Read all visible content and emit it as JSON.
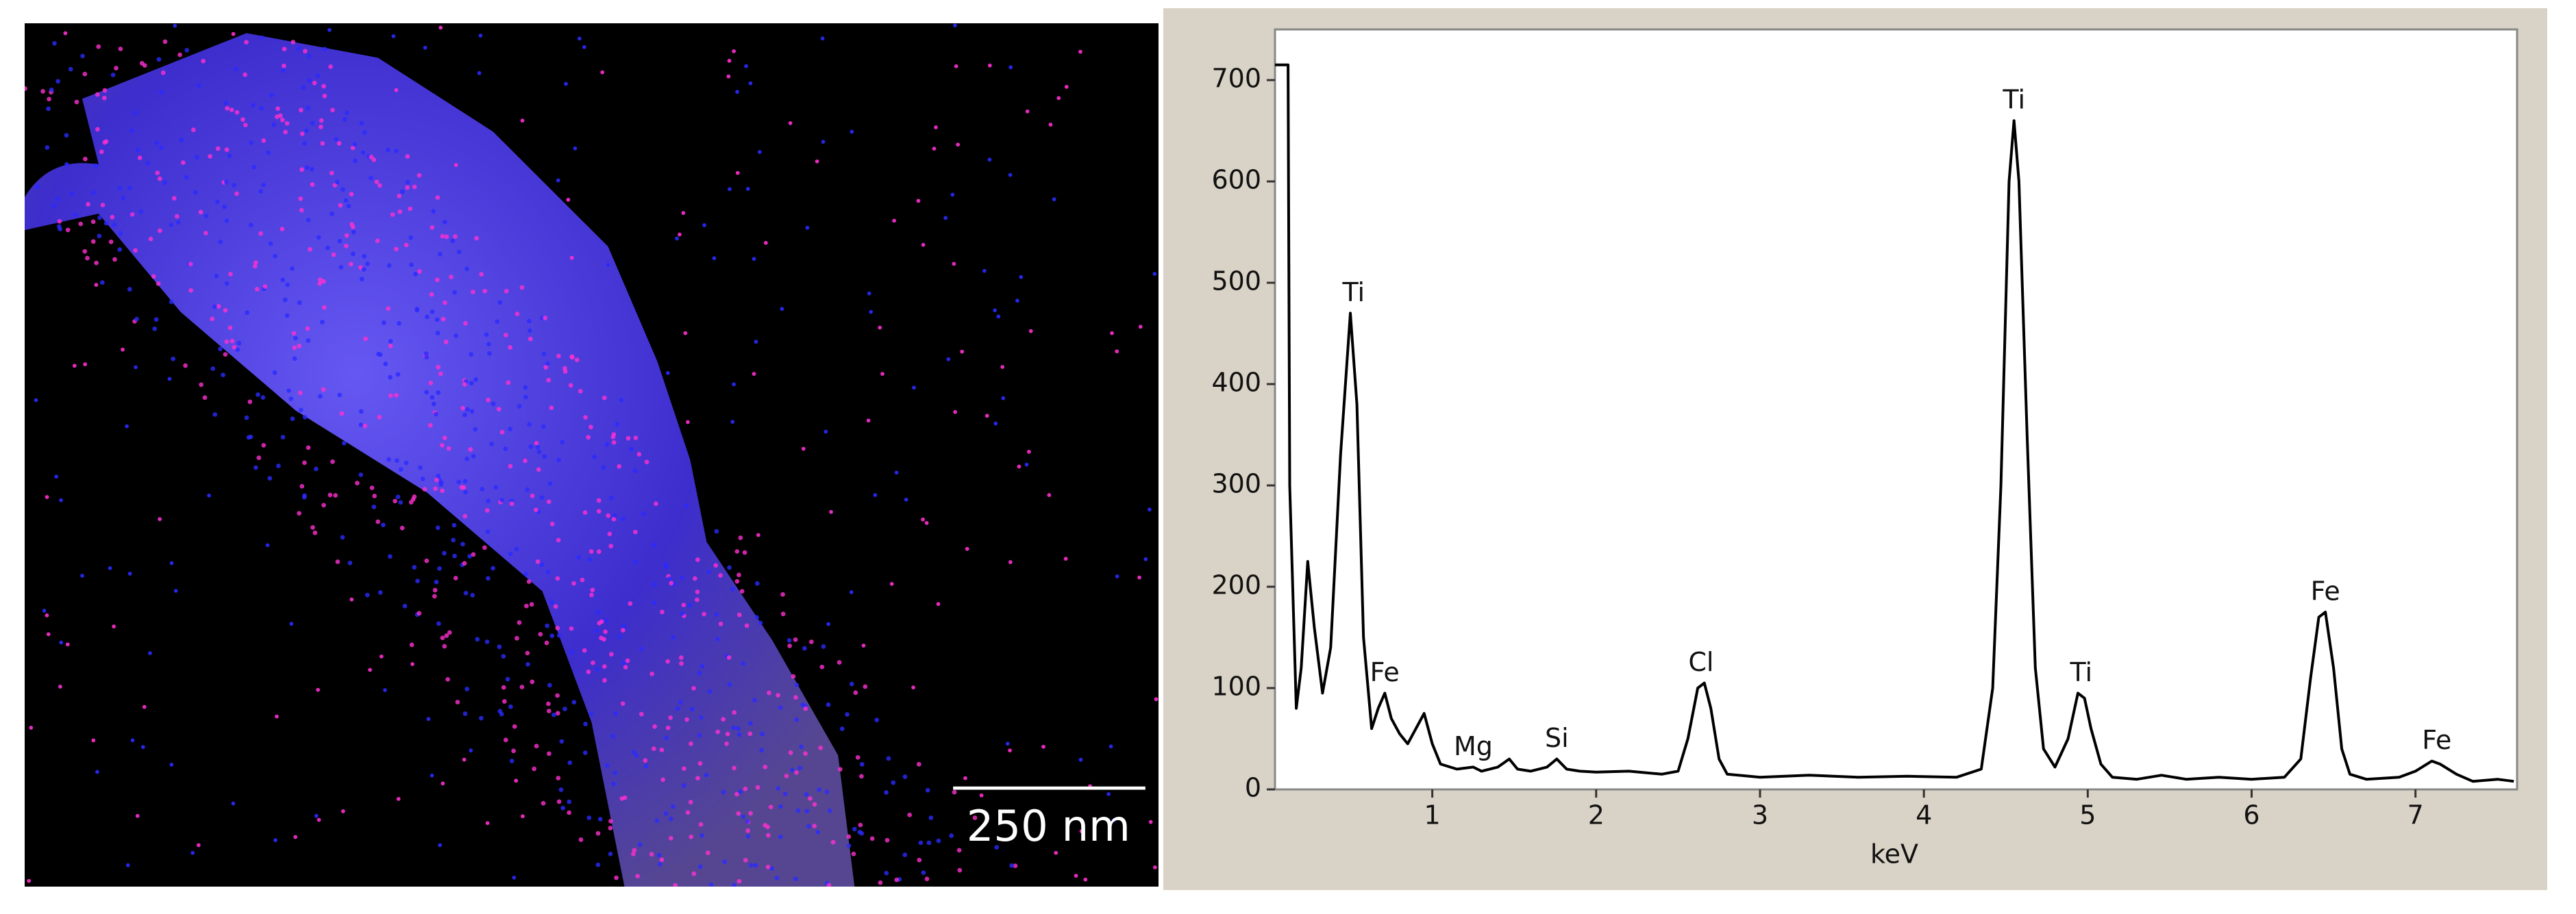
{
  "map_image": {
    "scale_bar": "250 nm"
  },
  "chart_data": {
    "type": "line",
    "x_label": "keV",
    "x": [
      0.04,
      0.12,
      0.13,
      0.17,
      0.2,
      0.24,
      0.28,
      0.33,
      0.38,
      0.44,
      0.5,
      0.54,
      0.58,
      0.63,
      0.67,
      0.71,
      0.75,
      0.8,
      0.85,
      0.9,
      0.95,
      1.0,
      1.05,
      1.15,
      1.25,
      1.3,
      1.4,
      1.47,
      1.52,
      1.6,
      1.7,
      1.76,
      1.82,
      1.9,
      2.0,
      2.2,
      2.4,
      2.5,
      2.56,
      2.62,
      2.66,
      2.7,
      2.75,
      2.8,
      3.0,
      3.3,
      3.6,
      3.9,
      4.2,
      4.35,
      4.42,
      4.47,
      4.52,
      4.55,
      4.58,
      4.63,
      4.68,
      4.73,
      4.8,
      4.88,
      4.94,
      4.98,
      5.02,
      5.08,
      5.15,
      5.3,
      5.45,
      5.6,
      5.8,
      6.0,
      6.2,
      6.3,
      6.36,
      6.41,
      6.45,
      6.5,
      6.55,
      6.6,
      6.7,
      6.9,
      7.0,
      7.1,
      7.15,
      7.25,
      7.35,
      7.5,
      7.6
    ],
    "values": [
      715,
      715,
      300,
      80,
      120,
      225,
      160,
      95,
      140,
      330,
      470,
      380,
      150,
      60,
      80,
      95,
      70,
      55,
      45,
      60,
      75,
      45,
      25,
      20,
      22,
      18,
      22,
      30,
      20,
      18,
      22,
      30,
      20,
      18,
      17,
      18,
      15,
      18,
      50,
      100,
      105,
      80,
      30,
      15,
      12,
      14,
      12,
      13,
      12,
      20,
      100,
      300,
      600,
      660,
      600,
      350,
      120,
      40,
      22,
      50,
      95,
      90,
      60,
      25,
      12,
      10,
      14,
      10,
      12,
      10,
      12,
      30,
      110,
      170,
      175,
      120,
      40,
      15,
      10,
      12,
      18,
      28,
      25,
      15,
      8,
      10,
      8
    ],
    "color": "#000000",
    "xlim": [
      0.04,
      7.62
    ],
    "xticks": [
      1,
      2,
      3,
      4,
      5,
      6,
      7
    ],
    "ylim": [
      0,
      750
    ],
    "yticks": [
      0,
      100,
      200,
      300,
      400,
      500,
      600,
      700
    ],
    "annotations": [
      {
        "text": "Ti",
        "x": 0.52,
        "y": 470
      },
      {
        "text": "Fe",
        "x": 0.71,
        "y": 95
      },
      {
        "text": "Mg",
        "x": 1.25,
        "y": 22
      },
      {
        "text": "Si",
        "x": 1.76,
        "y": 30
      },
      {
        "text": "Cl",
        "x": 2.64,
        "y": 105
      },
      {
        "text": "Ti",
        "x": 4.55,
        "y": 660
      },
      {
        "text": "Ti",
        "x": 4.96,
        "y": 95
      },
      {
        "text": "Fe",
        "x": 6.45,
        "y": 175
      },
      {
        "text": "Fe",
        "x": 7.13,
        "y": 28
      }
    ]
  }
}
